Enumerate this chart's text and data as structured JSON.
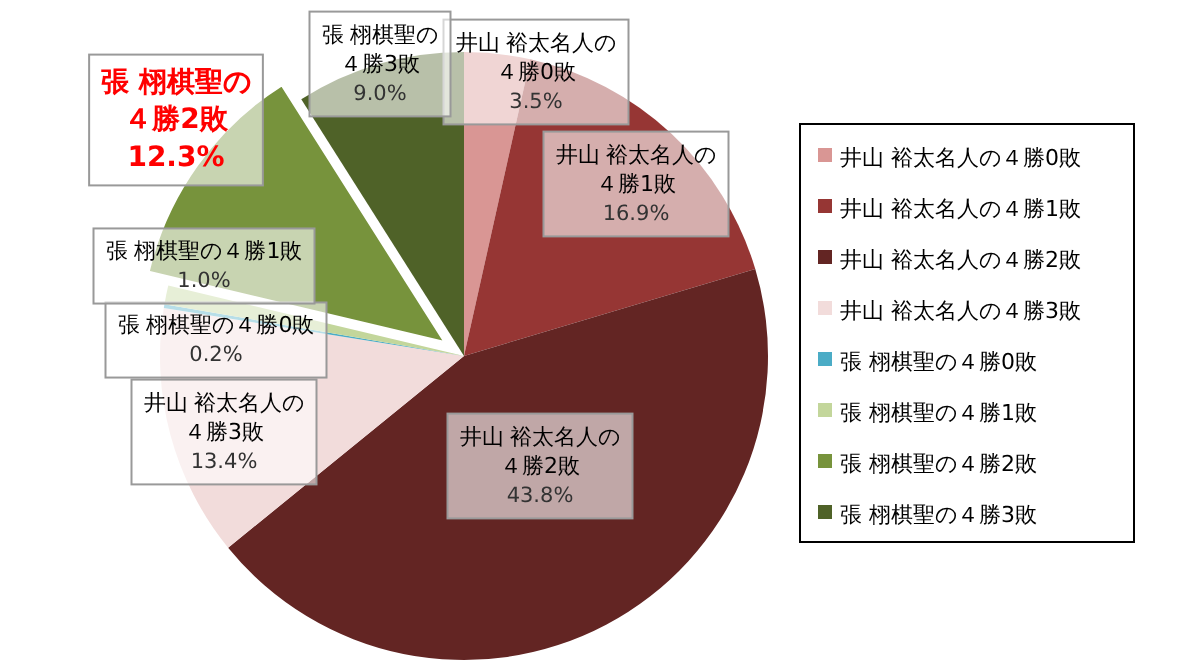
{
  "chart_data": {
    "type": "pie",
    "categories": [
      "井山 裕太名人の４勝0敗",
      "井山 裕太名人の４勝1敗",
      "井山 裕太名人の４勝2敗",
      "井山 裕太名人の４勝3敗",
      "張 栩棋聖の４勝0敗",
      "張 栩棋聖の４勝1敗",
      "張 栩棋聖の４勝2敗",
      "張 栩棋聖の４勝3敗"
    ],
    "values": [
      3.5,
      16.9,
      43.8,
      13.4,
      0.2,
      1.0,
      12.3,
      9.0
    ],
    "colors": [
      "#d99694",
      "#963634",
      "#632523",
      "#f2dcdb",
      "#4bacc6",
      "#c3d69b",
      "#77933c",
      "#4f6228"
    ],
    "value_labels": [
      "3.5%",
      "16.9%",
      "43.8%",
      "13.4%",
      "0.2%",
      "1.0%",
      "12.3%",
      "9.0%"
    ],
    "legend": "right"
  }
}
